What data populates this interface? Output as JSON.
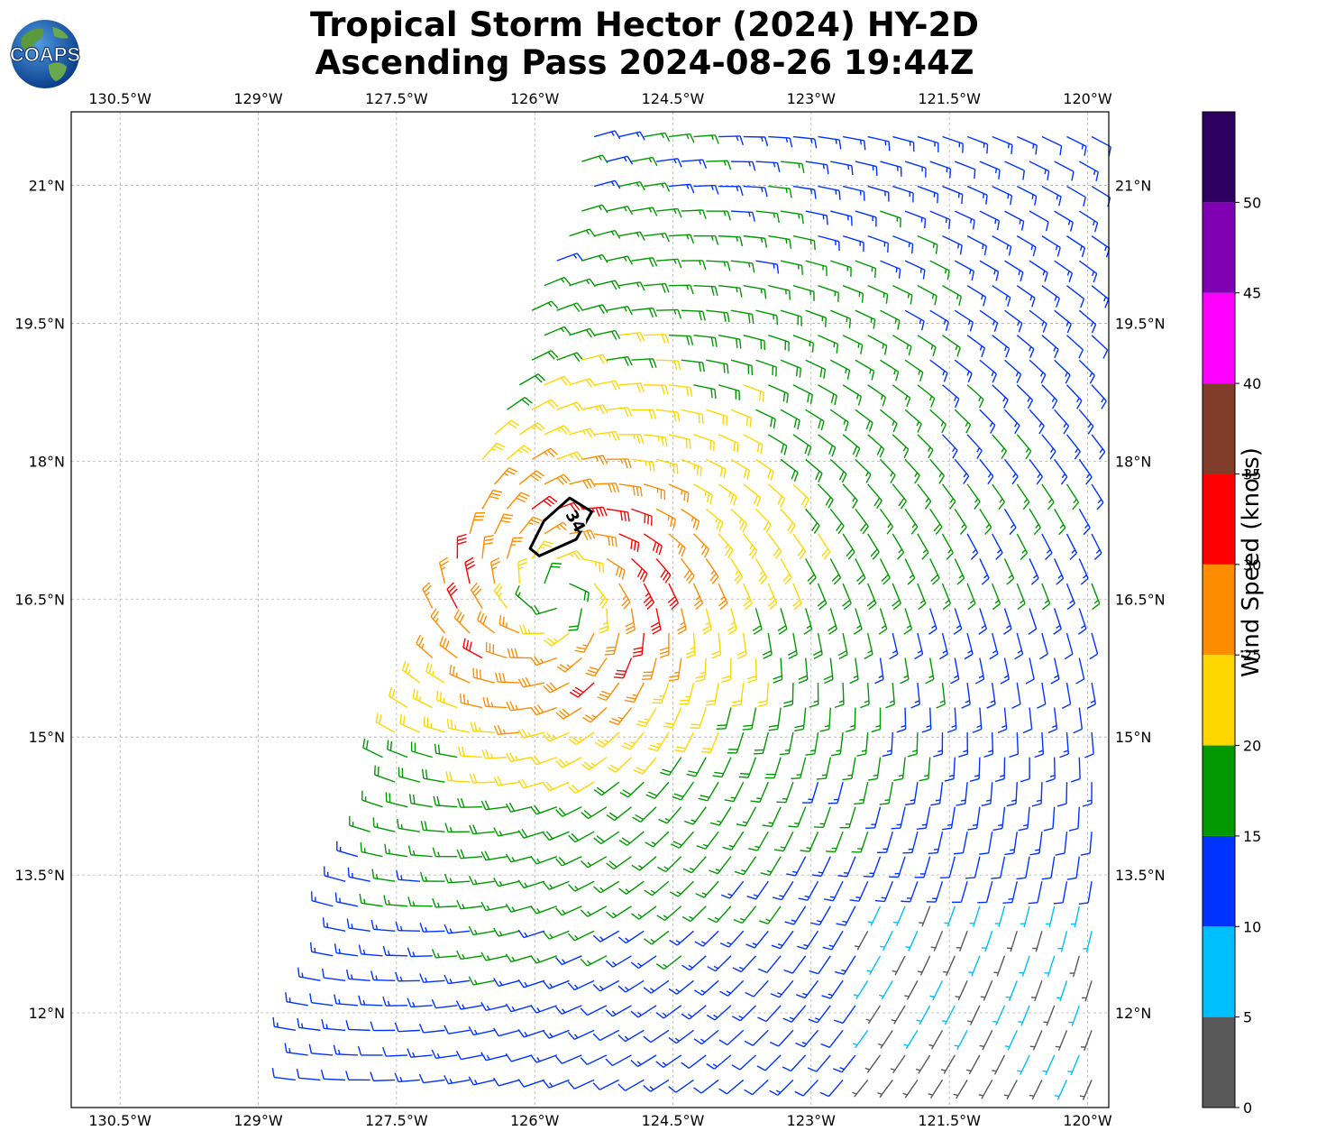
{
  "header": {
    "title_line1": "Tropical Storm Hector (2024) HY-2D",
    "title_line2": "Ascending Pass 2024-08-26 19:44Z",
    "logo_text": "COAPS"
  },
  "map": {
    "lon_labels": [
      "130.5°W",
      "129°W",
      "127.5°W",
      "126°W",
      "124.5°W",
      "123°W",
      "121.5°W",
      "120°W"
    ],
    "lon_values": [
      -130.5,
      -129,
      -127.5,
      -126,
      -124.5,
      -123,
      -121.5,
      -120
    ],
    "lat_labels": [
      "21°N",
      "19.5°N",
      "18°N",
      "16.5°N",
      "15°N",
      "13.5°N",
      "12°N"
    ],
    "lat_values": [
      21,
      19.5,
      18,
      16.5,
      15,
      13.5,
      12
    ],
    "lon_range": [
      -131.03,
      -119.77
    ],
    "lat_range": [
      10.97,
      21.8
    ],
    "storm_center": {
      "lon": -125.75,
      "lat": 16.55
    },
    "contour_label": "34",
    "grid": true
  },
  "colorbar": {
    "label": "Wind Speed (knots)",
    "ticks": [
      "0",
      "5",
      "10",
      "15",
      "20",
      "25",
      "30",
      "35",
      "40",
      "45",
      "50"
    ],
    "bins": [
      {
        "min": 0,
        "max": 5,
        "color": "#595959"
      },
      {
        "min": 5,
        "max": 10,
        "color": "#00bfff"
      },
      {
        "min": 10,
        "max": 15,
        "color": "#0033ff"
      },
      {
        "min": 15,
        "max": 20,
        "color": "#009900"
      },
      {
        "min": 20,
        "max": 25,
        "color": "#ffd700"
      },
      {
        "min": 25,
        "max": 30,
        "color": "#ff8c00"
      },
      {
        "min": 30,
        "max": 35,
        "color": "#ff0000"
      },
      {
        "min": 35,
        "max": 40,
        "color": "#803d2a"
      },
      {
        "min": 40,
        "max": 45,
        "color": "#ff00ff"
      },
      {
        "min": 45,
        "max": 50,
        "color": "#8000b3"
      },
      {
        "min": 50,
        "max": 55,
        "color": "#2e0060"
      }
    ]
  }
}
